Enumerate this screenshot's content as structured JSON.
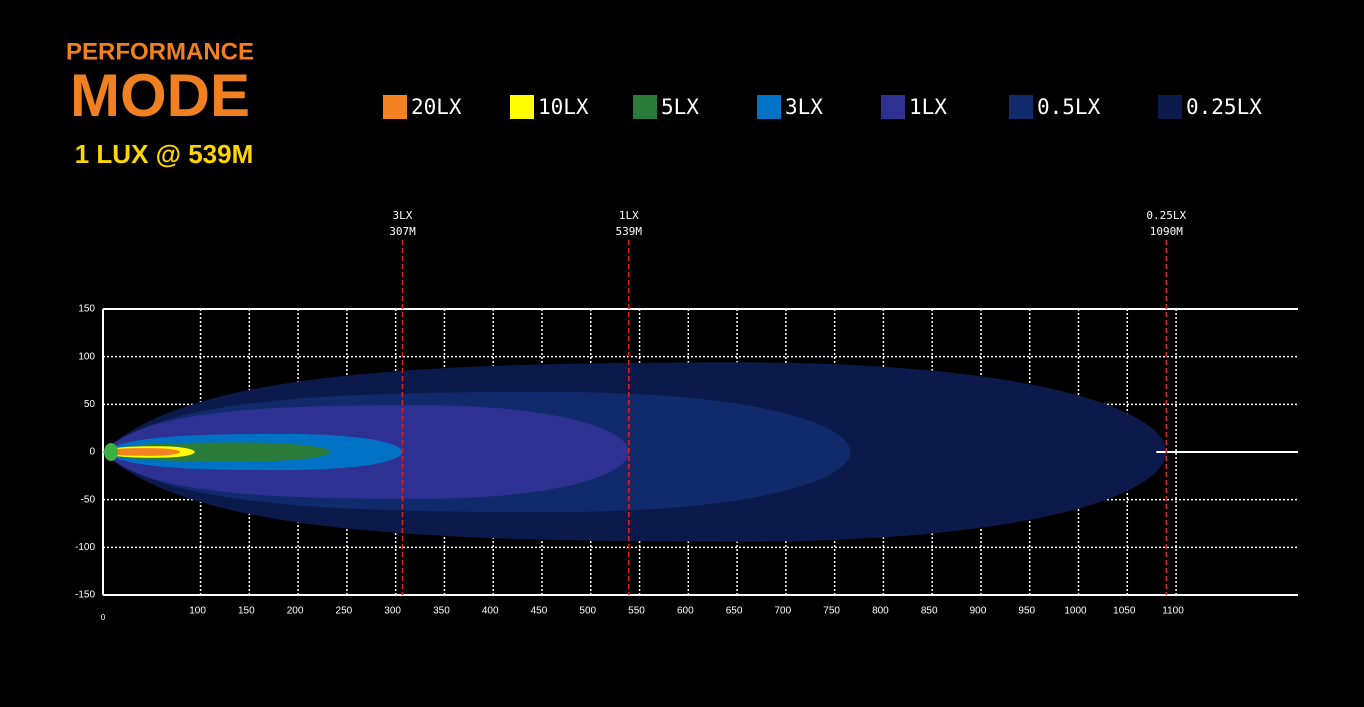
{
  "header": {
    "kicker": "PERFORMANCE",
    "title": "MODE",
    "subtitle": "1 LUX @ 539M"
  },
  "chart_data": {
    "type": "beam",
    "series": [
      {
        "name": "20LX",
        "color": "#f58220",
        "reach": 79,
        "half_width": 4
      },
      {
        "name": "10LX",
        "color": "#ffff00",
        "reach": 94,
        "half_width": 6
      },
      {
        "name": "5LX",
        "color": "#2a7a3a",
        "reach": 233,
        "half_width": 10
      },
      {
        "name": "3LX",
        "color": "#0072c6",
        "reach": 307,
        "half_width": 19
      },
      {
        "name": "1LX",
        "color": "#2e3192",
        "reach": 539,
        "half_width": 49
      },
      {
        "name": "0.5LX",
        "color": "#112a6b",
        "reach": 766,
        "half_width": 63
      },
      {
        "name": "0.25LX",
        "color": "#0b1a4a",
        "reach": 1090,
        "half_width": 94
      }
    ],
    "markers": [
      {
        "lux": "3LX",
        "value": 307,
        "label": "307M"
      },
      {
        "lux": "1LX",
        "value": 539,
        "label": "539M"
      },
      {
        "lux": "0.25LX",
        "value": 1090,
        "label": "1090M"
      }
    ],
    "xlim": [
      0,
      1225
    ],
    "ylim": [
      -150,
      150
    ],
    "xticks": [
      0,
      100,
      150,
      200,
      250,
      300,
      350,
      400,
      450,
      500,
      550,
      600,
      650,
      700,
      750,
      800,
      850,
      900,
      950,
      1000,
      1050,
      1100
    ],
    "yticks": [
      -150,
      -100,
      -50,
      0,
      50,
      100,
      150
    ],
    "grid": true
  }
}
